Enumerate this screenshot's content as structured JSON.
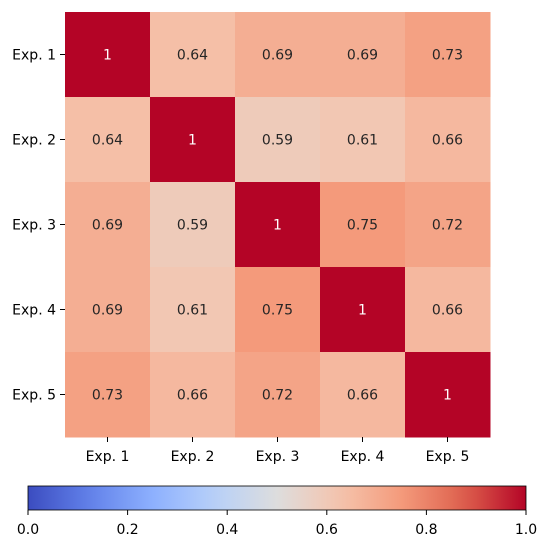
{
  "chart_data": {
    "type": "heatmap",
    "row_labels": [
      "Exp. 1",
      "Exp. 2",
      "Exp. 3",
      "Exp. 4",
      "Exp. 5"
    ],
    "col_labels": [
      "Exp. 1",
      "Exp. 2",
      "Exp. 3",
      "Exp. 4",
      "Exp. 5"
    ],
    "values": [
      [
        1,
        0.64,
        0.69,
        0.69,
        0.73
      ],
      [
        0.64,
        1,
        0.59,
        0.61,
        0.66
      ],
      [
        0.69,
        0.59,
        1,
        0.75,
        0.72
      ],
      [
        0.69,
        0.61,
        0.75,
        1,
        0.66
      ],
      [
        0.73,
        0.66,
        0.72,
        0.66,
        1
      ]
    ],
    "cell_labels": [
      [
        "1",
        "0.64",
        "0.69",
        "0.69",
        "0.73"
      ],
      [
        "0.64",
        "1",
        "0.59",
        "0.61",
        "0.66"
      ],
      [
        "0.69",
        "0.59",
        "1",
        "0.75",
        "0.72"
      ],
      [
        "0.69",
        "0.61",
        "0.75",
        "1",
        "0.66"
      ],
      [
        "0.73",
        "0.66",
        "0.72",
        "0.66",
        "1"
      ]
    ],
    "colormap": "coolwarm",
    "vmin": 0.0,
    "vmax": 1.0,
    "colorbar": {
      "orientation": "horizontal",
      "placement": "bottom",
      "ticks": [
        0.0,
        0.2,
        0.4,
        0.6,
        0.8,
        1.0
      ],
      "tick_labels": [
        "0.0",
        "0.2",
        "0.4",
        "0.6",
        "0.8",
        "1.0"
      ]
    },
    "title": "",
    "xlabel": "",
    "ylabel": ""
  }
}
